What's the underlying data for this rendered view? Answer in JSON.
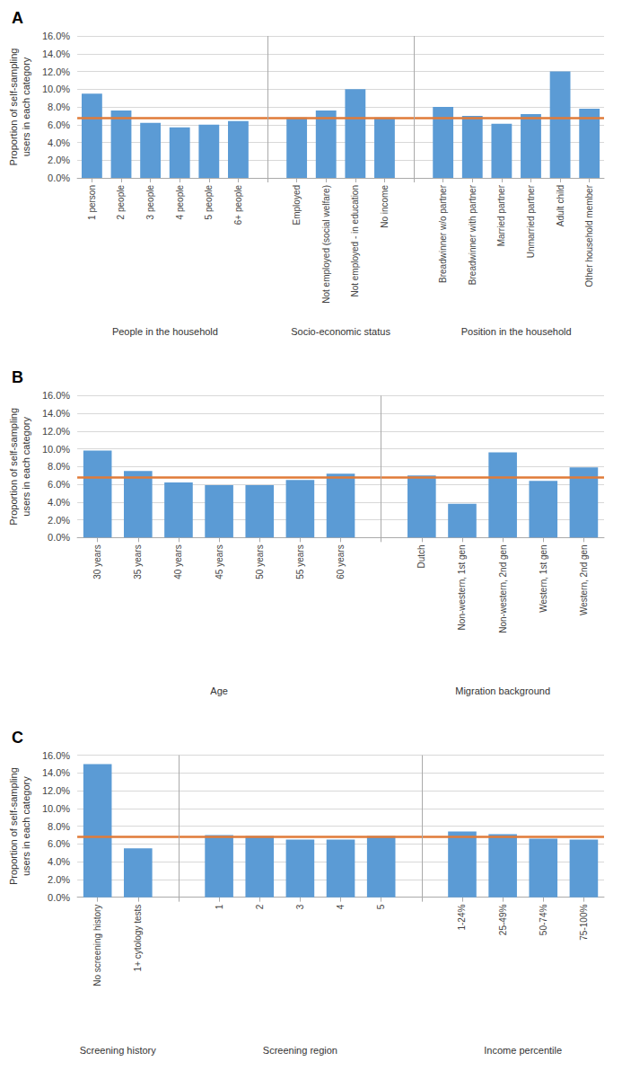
{
  "chart_data": [
    {
      "type": "bar",
      "title": "A",
      "ylabel": "Proportion of self-sampling\nusers in each category",
      "color": "#5b9bd5",
      "groups": [
        {
          "name": "People in the household",
          "categories": [
            "1 person",
            "2 people",
            "3 people",
            "4 people",
            "5 people",
            "6+ people"
          ],
          "values": [
            9.5,
            7.6,
            6.2,
            5.7,
            6.0,
            6.4
          ]
        },
        {
          "name": "Socio-economic status",
          "categories": [
            "Employed",
            "Not employed (social welfare)",
            "Not employed - in education",
            "No income"
          ],
          "values": [
            6.8,
            7.6,
            10.0,
            6.8
          ]
        },
        {
          "name": "Position in the household",
          "categories": [
            "Breadwinner w/o partner",
            "Breadwinner with partner",
            "Married partner",
            "Unmarried partner",
            "Adult child",
            "Other household member"
          ],
          "values": [
            8.0,
            7.0,
            6.1,
            7.2,
            12.0,
            7.8
          ]
        }
      ],
      "reference_line": {
        "value": 6.8,
        "color": "#e07b39"
      },
      "ylim": [
        0,
        16
      ],
      "yticks": [
        {
          "value": 0,
          "label": "0.0%"
        },
        {
          "value": 2,
          "label": "2.0%"
        },
        {
          "value": 4,
          "label": "4.0%"
        },
        {
          "value": 6,
          "label": "6.0%"
        },
        {
          "value": 8,
          "label": "8.0%"
        },
        {
          "value": 10,
          "label": "10.0%"
        },
        {
          "value": 12,
          "label": "12.0%"
        },
        {
          "value": 14,
          "label": "14.0%"
        },
        {
          "value": 16,
          "label": "16.0%"
        }
      ],
      "grid": true
    },
    {
      "type": "bar",
      "title": "B",
      "ylabel": "Proportion of self-sampling\nusers in each category",
      "color": "#5b9bd5",
      "groups": [
        {
          "name": "Age",
          "categories": [
            "30 years",
            "35 years",
            "40 years",
            "45 years",
            "50 years",
            "55 years",
            "60 years"
          ],
          "values": [
            9.8,
            7.5,
            6.2,
            5.9,
            5.9,
            6.5,
            7.2
          ]
        },
        {
          "name": "Migration background",
          "categories": [
            "Dutch",
            "Non-western, 1st gen",
            "Non-western, 2nd gen",
            "Western, 1st gen",
            "Western, 2nd gen"
          ],
          "values": [
            7.0,
            3.8,
            9.6,
            6.4,
            7.9
          ]
        }
      ],
      "reference_line": {
        "value": 6.8,
        "color": "#e07b39"
      },
      "ylim": [
        0,
        16
      ],
      "yticks": [
        {
          "value": 0,
          "label": "0.0%"
        },
        {
          "value": 2,
          "label": "2.0%"
        },
        {
          "value": 4,
          "label": "4.0%"
        },
        {
          "value": 6,
          "label": "6.0%"
        },
        {
          "value": 8,
          "label": "8.0%"
        },
        {
          "value": 10,
          "label": "10.0%"
        },
        {
          "value": 12,
          "label": "12.0%"
        },
        {
          "value": 14,
          "label": "14.0%"
        },
        {
          "value": 16,
          "label": "16.0%"
        }
      ],
      "grid": true
    },
    {
      "type": "bar",
      "title": "C",
      "ylabel": "Proportion of self-sampling\nusers in each category",
      "color": "#5b9bd5",
      "groups": [
        {
          "name": "Screening history",
          "categories": [
            "No screening history",
            "1+ cytology tests"
          ],
          "values": [
            15.0,
            5.5
          ]
        },
        {
          "name": "Screening region",
          "categories": [
            "1",
            "2",
            "3",
            "4",
            "5"
          ],
          "values": [
            7.0,
            6.9,
            6.5,
            6.5,
            6.9
          ]
        },
        {
          "name": "Income percentile",
          "categories": [
            "1-24%",
            "25-49%",
            "50-74%",
            "75-100%"
          ],
          "values": [
            7.4,
            7.1,
            6.6,
            6.5
          ]
        }
      ],
      "reference_line": {
        "value": 6.8,
        "color": "#e07b39"
      },
      "ylim": [
        0,
        16
      ],
      "yticks": [
        {
          "value": 0,
          "label": "0.0%"
        },
        {
          "value": 2,
          "label": "2.0%"
        },
        {
          "value": 4,
          "label": "4.0%"
        },
        {
          "value": 6,
          "label": "6.0%"
        },
        {
          "value": 8,
          "label": "8.0%"
        },
        {
          "value": 10,
          "label": "10.0%"
        },
        {
          "value": 12,
          "label": "12.0%"
        },
        {
          "value": 14,
          "label": "14.0%"
        },
        {
          "value": 16,
          "label": "16.0%"
        }
      ],
      "grid": true
    }
  ]
}
